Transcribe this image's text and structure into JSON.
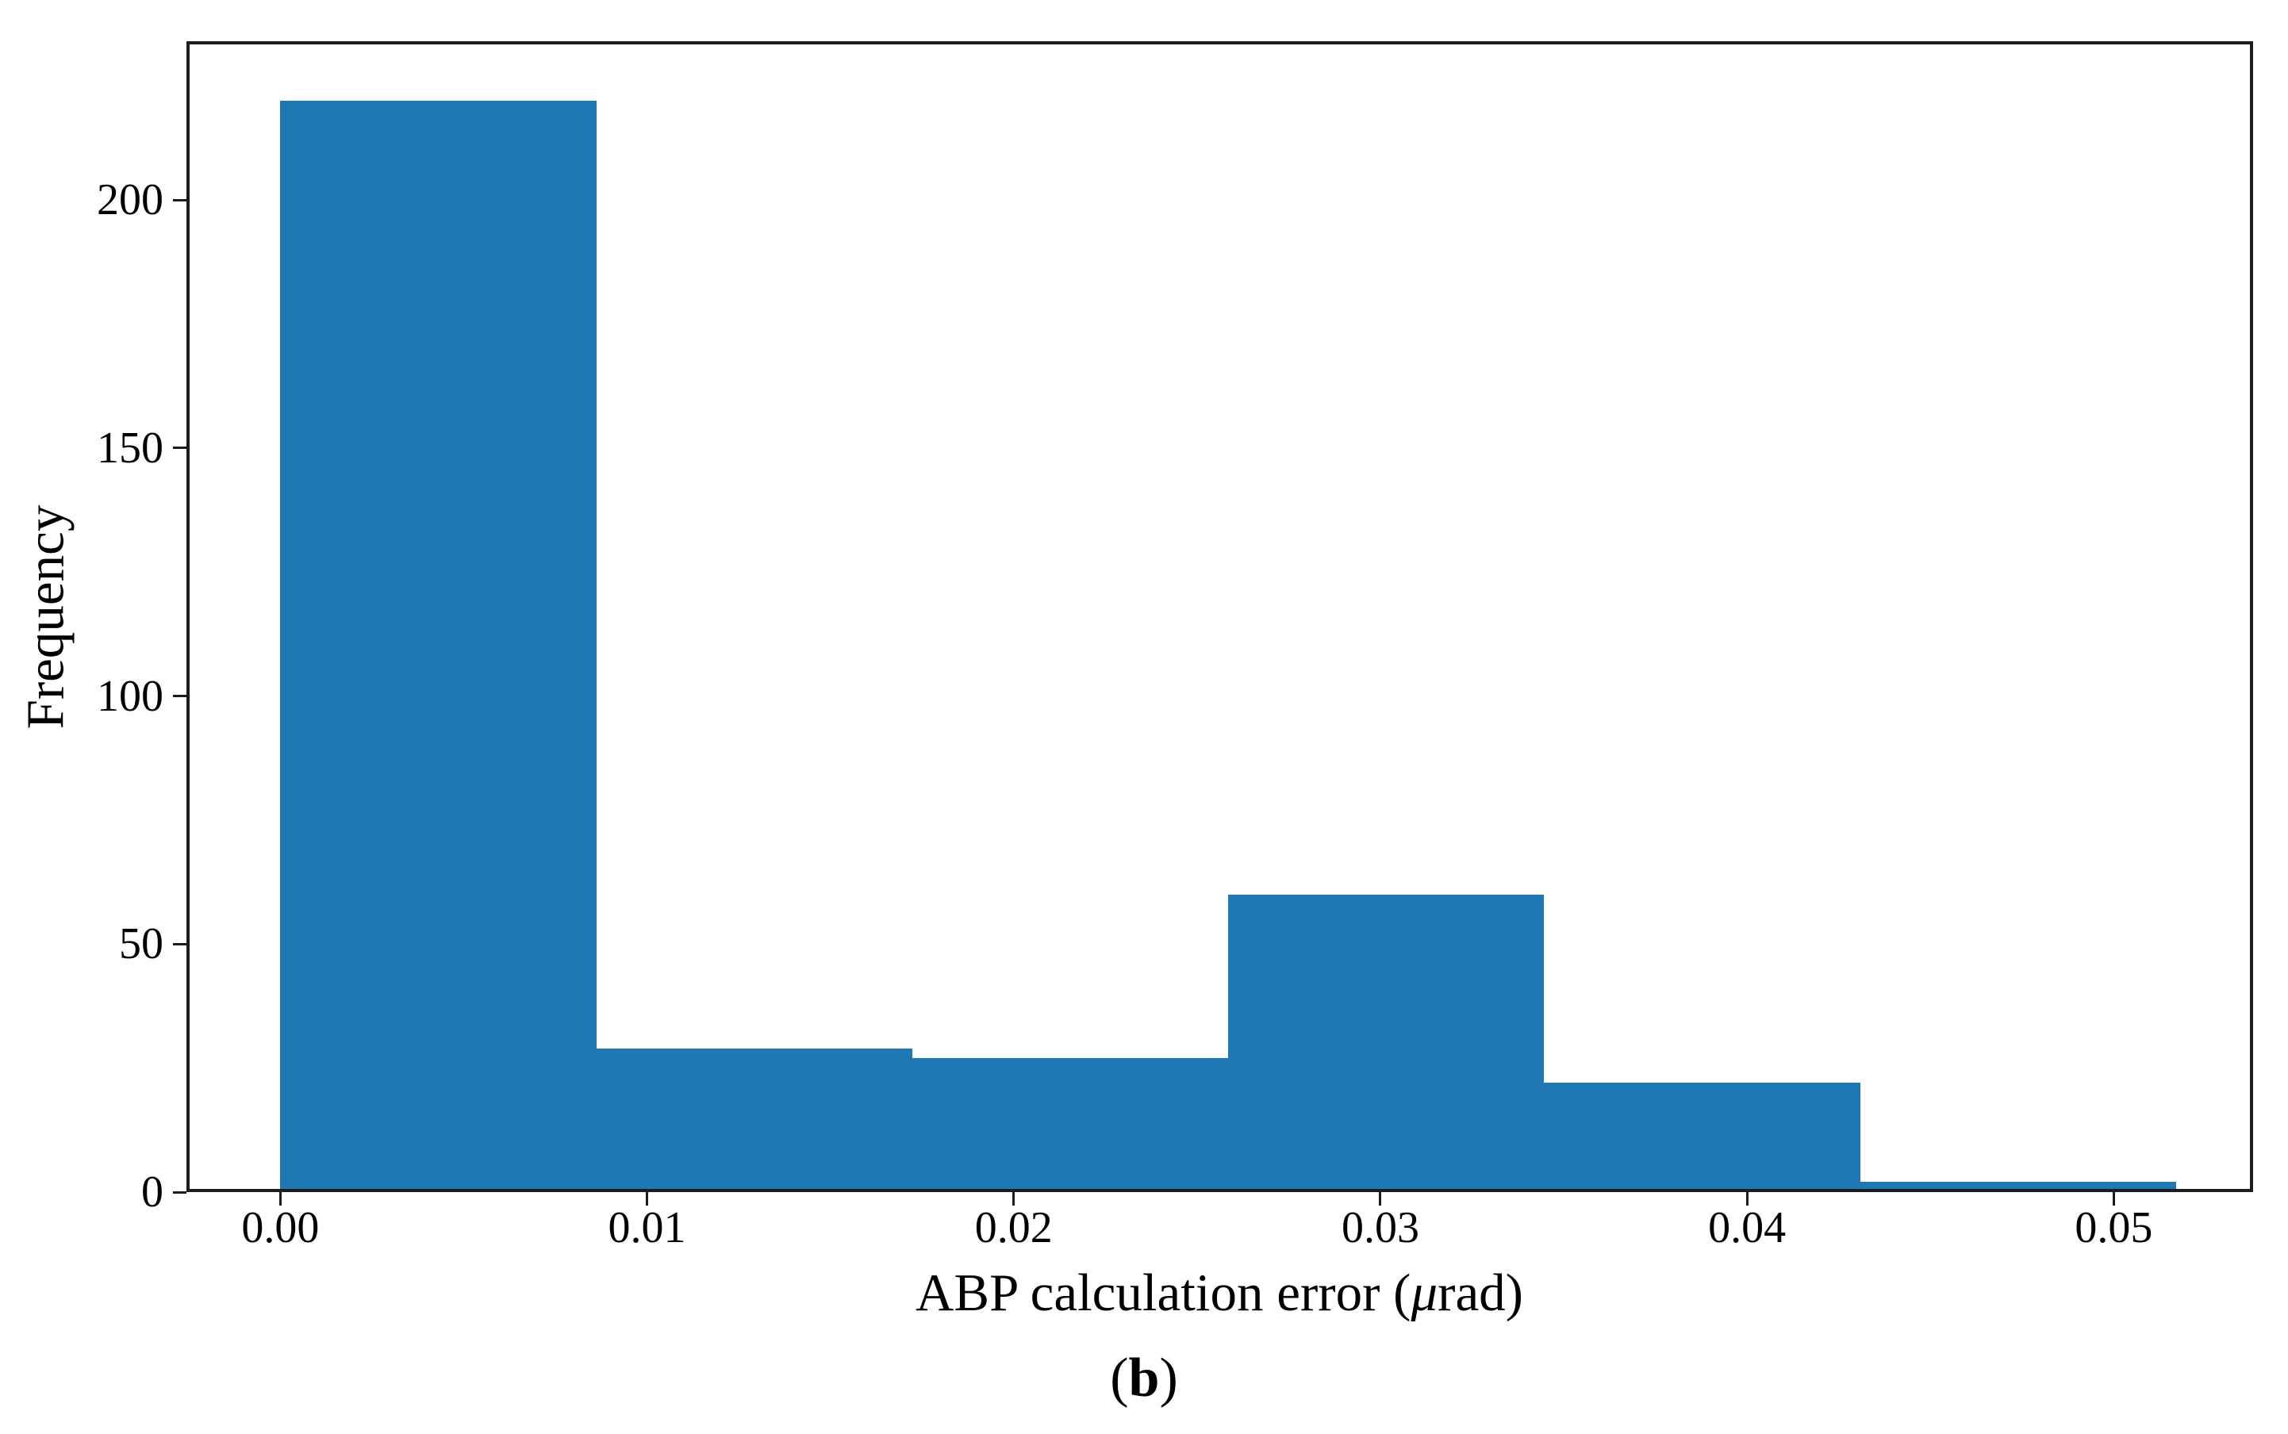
{
  "figure": {
    "ylabel": "Frequency",
    "xlabel": {
      "prefix": "ABP calculation error (",
      "mu": "μ",
      "suffix": "rad)"
    },
    "caption": {
      "open": "(",
      "letter": "b",
      "close": ")"
    }
  },
  "chart_data": {
    "type": "bar",
    "subtype": "histogram",
    "title": "",
    "xlabel": "ABP calculation error (μrad)",
    "ylabel": "Frequency",
    "caption": "(b)",
    "bin_edges": [
      0.0,
      0.008617,
      0.017233,
      0.02585,
      0.034467,
      0.043083,
      0.0517
    ],
    "counts": [
      220,
      29,
      27,
      60,
      22,
      2
    ],
    "bar_color": "#1f77b4",
    "axis_color": "#1c1c1c",
    "xlim": [
      -0.00256,
      0.0538
    ],
    "ylim": [
      0,
      232
    ],
    "x_ticks": [
      0.0,
      0.01,
      0.02,
      0.03,
      0.04,
      0.05
    ],
    "x_tick_labels": [
      "0.00",
      "0.01",
      "0.02",
      "0.03",
      "0.04",
      "0.05"
    ],
    "y_ticks": [
      0,
      50,
      100,
      150,
      200
    ],
    "y_tick_labels": [
      "0",
      "50",
      "100",
      "150",
      "200"
    ],
    "grid": false,
    "legend": null
  }
}
